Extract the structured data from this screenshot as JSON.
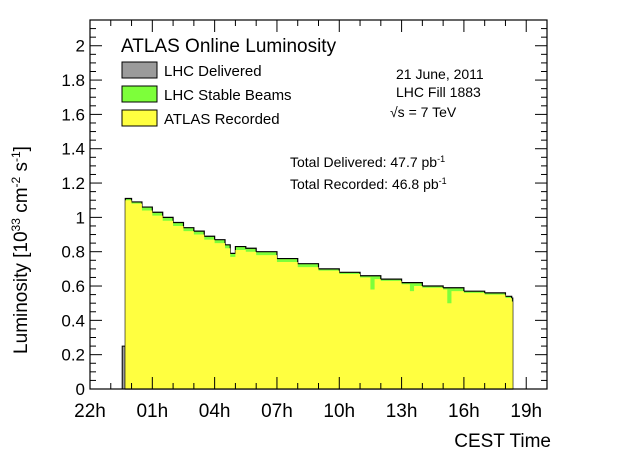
{
  "chart_data": {
    "type": "area",
    "title": "ATLAS Online Luminosity",
    "xlabel": "CEST Time",
    "ylabel": "Luminosity [10",
    "ylabel_exp1": "33",
    "ylabel_mid": " cm",
    "ylabel_exp2": "-2",
    "ylabel_mid2": " s",
    "ylabel_exp3": "-1",
    "ylabel_end": "]",
    "xlim": [
      -2,
      20.0
    ],
    "ylim": [
      0,
      2.15
    ],
    "x_ticks": [
      {
        "value": -2,
        "label": "22h"
      },
      {
        "value": 1,
        "label": "01h"
      },
      {
        "value": 4,
        "label": "04h"
      },
      {
        "value": 7,
        "label": "07h"
      },
      {
        "value": 10,
        "label": "10h"
      },
      {
        "value": 13,
        "label": "13h"
      },
      {
        "value": 16,
        "label": "16h"
      },
      {
        "value": 19,
        "label": "19h"
      }
    ],
    "y_ticks": [
      {
        "value": 0,
        "label": "0"
      },
      {
        "value": 0.2,
        "label": "0.2"
      },
      {
        "value": 0.4,
        "label": "0.4"
      },
      {
        "value": 0.6,
        "label": "0.6"
      },
      {
        "value": 0.8,
        "label": "0.8"
      },
      {
        "value": 1.0,
        "label": "1"
      },
      {
        "value": 1.2,
        "label": "1.2"
      },
      {
        "value": 1.4,
        "label": "1.4"
      },
      {
        "value": 1.6,
        "label": "1.6"
      },
      {
        "value": 1.8,
        "label": "1.8"
      },
      {
        "value": 2.0,
        "label": "2"
      }
    ],
    "legend": [
      {
        "name": "LHC Delivered",
        "color": "#9b9b9b"
      },
      {
        "name": "LHC Stable Beams",
        "color": "#7dff3a"
      },
      {
        "name": "ATLAS Recorded",
        "color": "#ffff40"
      }
    ],
    "annotations": {
      "date": "21 June, 2011",
      "fill": "LHC Fill 1883",
      "energy_sqrt": "√s",
      "energy_val": " = 7 TeV",
      "total_delivered": "Total Delivered: 47.7 pb",
      "total_delivered_exp": "-1",
      "total_recorded": "Total Recorded: 46.8 pb",
      "total_recorded_exp": "-1"
    },
    "colors": {
      "delivered": "#9b9b9b",
      "stable": "#7dff3a",
      "recorded": "#ffff40"
    },
    "delivered_ramp": {
      "x": [
        -0.7,
        -0.45,
        -0.45,
        -0.3
      ],
      "y": [
        0.0,
        0.0,
        0.25,
        0.25
      ]
    },
    "series": [
      {
        "name": "LHC Stable Beams",
        "x": [
          -0.3,
          0.0,
          0.5,
          1.0,
          1.5,
          2.0,
          2.5,
          3.0,
          3.5,
          4.0,
          4.5,
          4.75,
          5.0,
          5.5,
          6.0,
          7.0,
          8.0,
          9.0,
          10.0,
          11.0,
          12.0,
          13.0,
          14.0,
          15.0,
          16.0,
          17.0,
          18.0,
          18.3
        ],
        "y": [
          1.11,
          1.09,
          1.06,
          1.03,
          1.0,
          0.97,
          0.94,
          0.92,
          0.89,
          0.87,
          0.84,
          0.79,
          0.83,
          0.82,
          0.8,
          0.76,
          0.73,
          0.7,
          0.68,
          0.66,
          0.64,
          0.62,
          0.6,
          0.59,
          0.57,
          0.56,
          0.54,
          0.53
        ]
      },
      {
        "name": "ATLAS Recorded",
        "x": [
          -0.3,
          0.0,
          0.5,
          1.0,
          1.5,
          2.0,
          2.5,
          3.0,
          3.5,
          4.0,
          4.5,
          4.75,
          5.0,
          5.5,
          6.0,
          7.0,
          8.0,
          9.0,
          10.0,
          11.0,
          11.5,
          11.7,
          12.0,
          13.0,
          13.4,
          13.6,
          14.0,
          15.0,
          15.2,
          15.4,
          16.0,
          17.0,
          18.0,
          18.3
        ],
        "y": [
          1.1,
          1.08,
          1.04,
          1.01,
          0.98,
          0.95,
          0.92,
          0.9,
          0.87,
          0.85,
          0.82,
          0.77,
          0.81,
          0.8,
          0.78,
          0.74,
          0.71,
          0.69,
          0.67,
          0.65,
          0.58,
          0.64,
          0.63,
          0.61,
          0.57,
          0.6,
          0.59,
          0.58,
          0.5,
          0.57,
          0.56,
          0.55,
          0.53,
          0.51
        ]
      }
    ]
  }
}
